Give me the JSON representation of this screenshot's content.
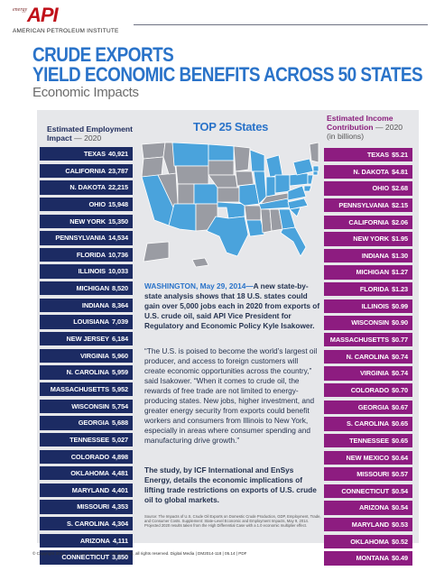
{
  "brand": {
    "logo_prefix": "energy",
    "logo": "API",
    "institute": "AMERICAN PETROLEUM INSTITUTE"
  },
  "title": {
    "line1": "CRUDE EXPORTS",
    "line2": "YIELD ECONOMIC BENEFITS ACROSS 50 STATES",
    "subtitle": "Economic Impacts"
  },
  "employment": {
    "heading": "Estimated Employment",
    "heading2": "Impact",
    "year": "— 2020",
    "rows": [
      {
        "state": "TEXAS",
        "value": "40,921"
      },
      {
        "state": "CALIFORNIA",
        "value": "23,787"
      },
      {
        "state": "N. DAKOTA",
        "value": "22,215"
      },
      {
        "state": "OHIO",
        "value": "15,948"
      },
      {
        "state": "NEW YORK",
        "value": "15,350"
      },
      {
        "state": "PENNSYLVANIA",
        "value": "14,534"
      },
      {
        "state": "FLORIDA",
        "value": "10,736"
      },
      {
        "state": "ILLINOIS",
        "value": "10,033"
      },
      {
        "state": "MICHIGAN",
        "value": "8,520"
      },
      {
        "state": "INDIANA",
        "value": "8,364"
      },
      {
        "state": "LOUISIANA",
        "value": "7,039"
      },
      {
        "state": "NEW JERSEY",
        "value": "6,184"
      },
      {
        "state": "VIRGINIA",
        "value": "5,960"
      },
      {
        "state": "N. CAROLINA",
        "value": "5,959"
      },
      {
        "state": "MASSACHUSETTS",
        "value": "5,952"
      },
      {
        "state": "WISCONSIN",
        "value": "5,754"
      },
      {
        "state": "GEORGIA",
        "value": "5,688"
      },
      {
        "state": "TENNESSEE",
        "value": "5,027"
      },
      {
        "state": "COLORADO",
        "value": "4,898"
      },
      {
        "state": "OKLAHOMA",
        "value": "4,481"
      },
      {
        "state": "MARYLAND",
        "value": "4,401"
      },
      {
        "state": "MISSOURI",
        "value": "4,353"
      },
      {
        "state": "S. CAROLINA",
        "value": "4,304"
      },
      {
        "state": "ARIZONA",
        "value": "4,111"
      },
      {
        "state": "CONNECTICUT",
        "value": "3,850"
      }
    ]
  },
  "income": {
    "heading": "Estimated Income",
    "heading2": "Contribution",
    "year": "— 2020",
    "unit": "(in billions)",
    "rows": [
      {
        "state": "TEXAS",
        "value": "$5.21"
      },
      {
        "state": "N. DAKOTA",
        "value": "$4.81"
      },
      {
        "state": "OHIO",
        "value": "$2.68"
      },
      {
        "state": "PENNSYLVANIA",
        "value": "$2.15"
      },
      {
        "state": "CALIFORNIA",
        "value": "$2.06"
      },
      {
        "state": "NEW YORK",
        "value": "$1.95"
      },
      {
        "state": "INDIANA",
        "value": "$1.30"
      },
      {
        "state": "MICHIGAN",
        "value": "$1.27"
      },
      {
        "state": "FLORIDA",
        "value": "$1.23"
      },
      {
        "state": "ILLINOIS",
        "value": "$0.99"
      },
      {
        "state": "WISCONSIN",
        "value": "$0.90"
      },
      {
        "state": "MASSACHUSETTS",
        "value": "$0.77"
      },
      {
        "state": "N. CAROLINA",
        "value": "$0.74"
      },
      {
        "state": "VIRGINIA",
        "value": "$0.74"
      },
      {
        "state": "COLORADO",
        "value": "$0.70"
      },
      {
        "state": "GEORGIA",
        "value": "$0.67"
      },
      {
        "state": "S. CAROLINA",
        "value": "$0.65"
      },
      {
        "state": "TENNESSEE",
        "value": "$0.65"
      },
      {
        "state": "NEW MEXICO",
        "value": "$0.64"
      },
      {
        "state": "MISSOURI",
        "value": "$0.57"
      },
      {
        "state": "CONNECTICUT",
        "value": "$0.54"
      },
      {
        "state": "ARIZONA",
        "value": "$0.54"
      },
      {
        "state": "MARYLAND",
        "value": "$0.53"
      },
      {
        "state": "OKLAHOMA",
        "value": "$0.52"
      },
      {
        "state": "MONTANA",
        "value": "$0.49"
      }
    ]
  },
  "map": {
    "heading": "TOP 25 States",
    "highlight_color": "#4aa3dc",
    "base_color": "#9a9ca3"
  },
  "article": {
    "dateline": "WASHINGTON, May 29, 2014—",
    "lead": "A new state-by-state analysis shows that 18 U.S. states could gain over 5,000 jobs each in 2020 from exports of U.S. crude oil, said API Vice President for Regulatory and Economic Policy Kyle Isakower.",
    "quote": "“The U.S. is poised to become the world’s largest oil producer, and access to foreign customers will create economic opportunities across the country,” said Isakower. “When it comes to crude oil, the rewards of free trade are not limited to energy-producing states. New jobs, higher investment, and greater energy security from exports could benefit workers and consumers from Illinois to New York, especially in areas where consumer spending and manufacturing drive growth.”",
    "study": "The study, by ICF International and EnSys Energy, details the economic implications of lifting trade restrictions on exports of U.S. crude oil to global markets.",
    "source": "Source: The Impacts of U.S. Crude Oil Exports on Domestic Crude Production, GDP, Employment, Trade, and Consumer Costs. Supplement: State-Level Economic and Employment Impacts, May 9, 2014. Projected 2020 results taken from the High Differential Case with a 1.0 economic multiplier effect."
  },
  "footer": {
    "copyright": "© Copyright 2014 – American Petroleum Institute (API), all rights reserved. Digital Media | DM2014-118 | 05.14 | PDF"
  }
}
